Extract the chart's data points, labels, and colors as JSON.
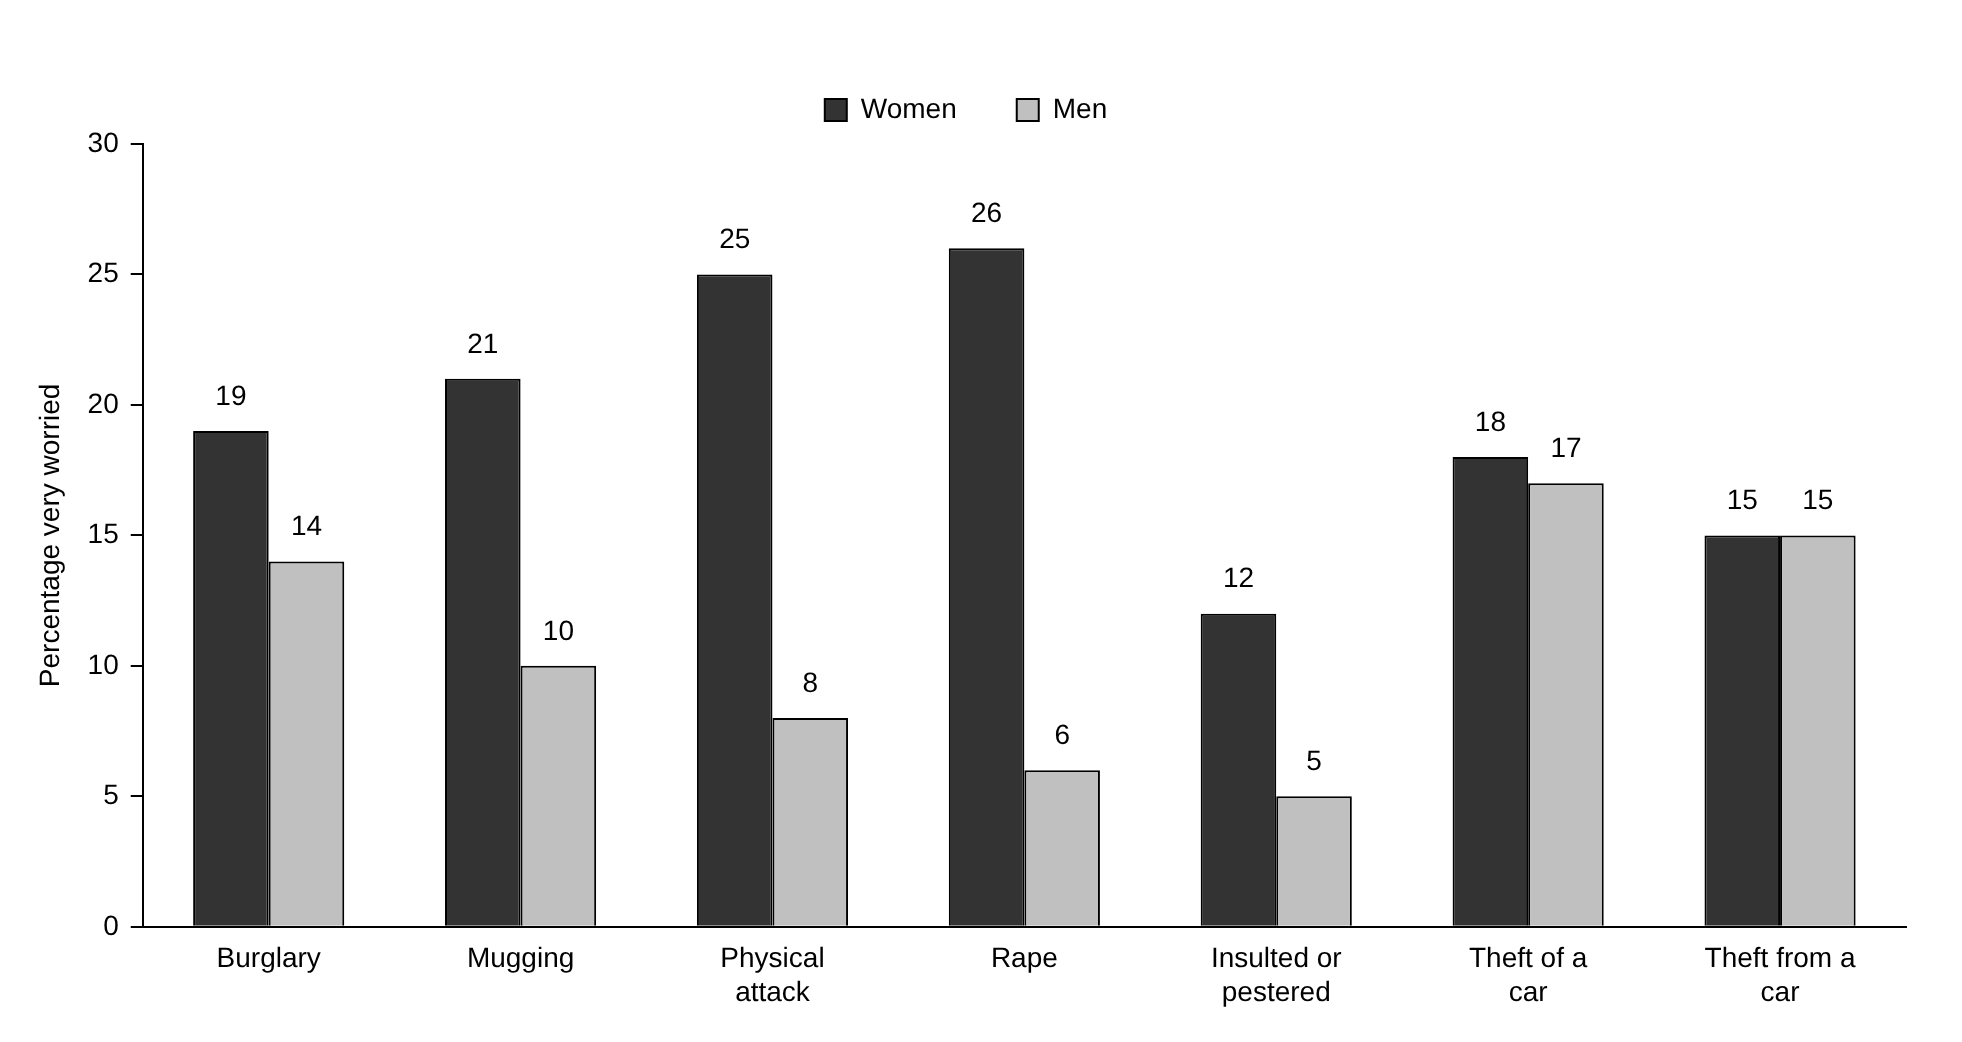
{
  "chart_data": {
    "type": "bar",
    "ylabel": "Percentage very worried",
    "categories": [
      "Burglary",
      "Mugging",
      "Physical attack",
      "Rape",
      "Insulted or pestered",
      "Theft of a car",
      "Theft from a car"
    ],
    "series": [
      {
        "name": "Women",
        "color": "#333333",
        "values": [
          19,
          21,
          25,
          26,
          12,
          18,
          15
        ]
      },
      {
        "name": "Men",
        "color": "#c0c0c0",
        "values": [
          14,
          10,
          8,
          6,
          5,
          17,
          15
        ]
      }
    ],
    "ylim": [
      0,
      30
    ],
    "yticks": [
      0,
      5,
      10,
      15,
      20,
      25,
      30
    ],
    "grid": false,
    "legend": "top",
    "data_labels": true
  }
}
